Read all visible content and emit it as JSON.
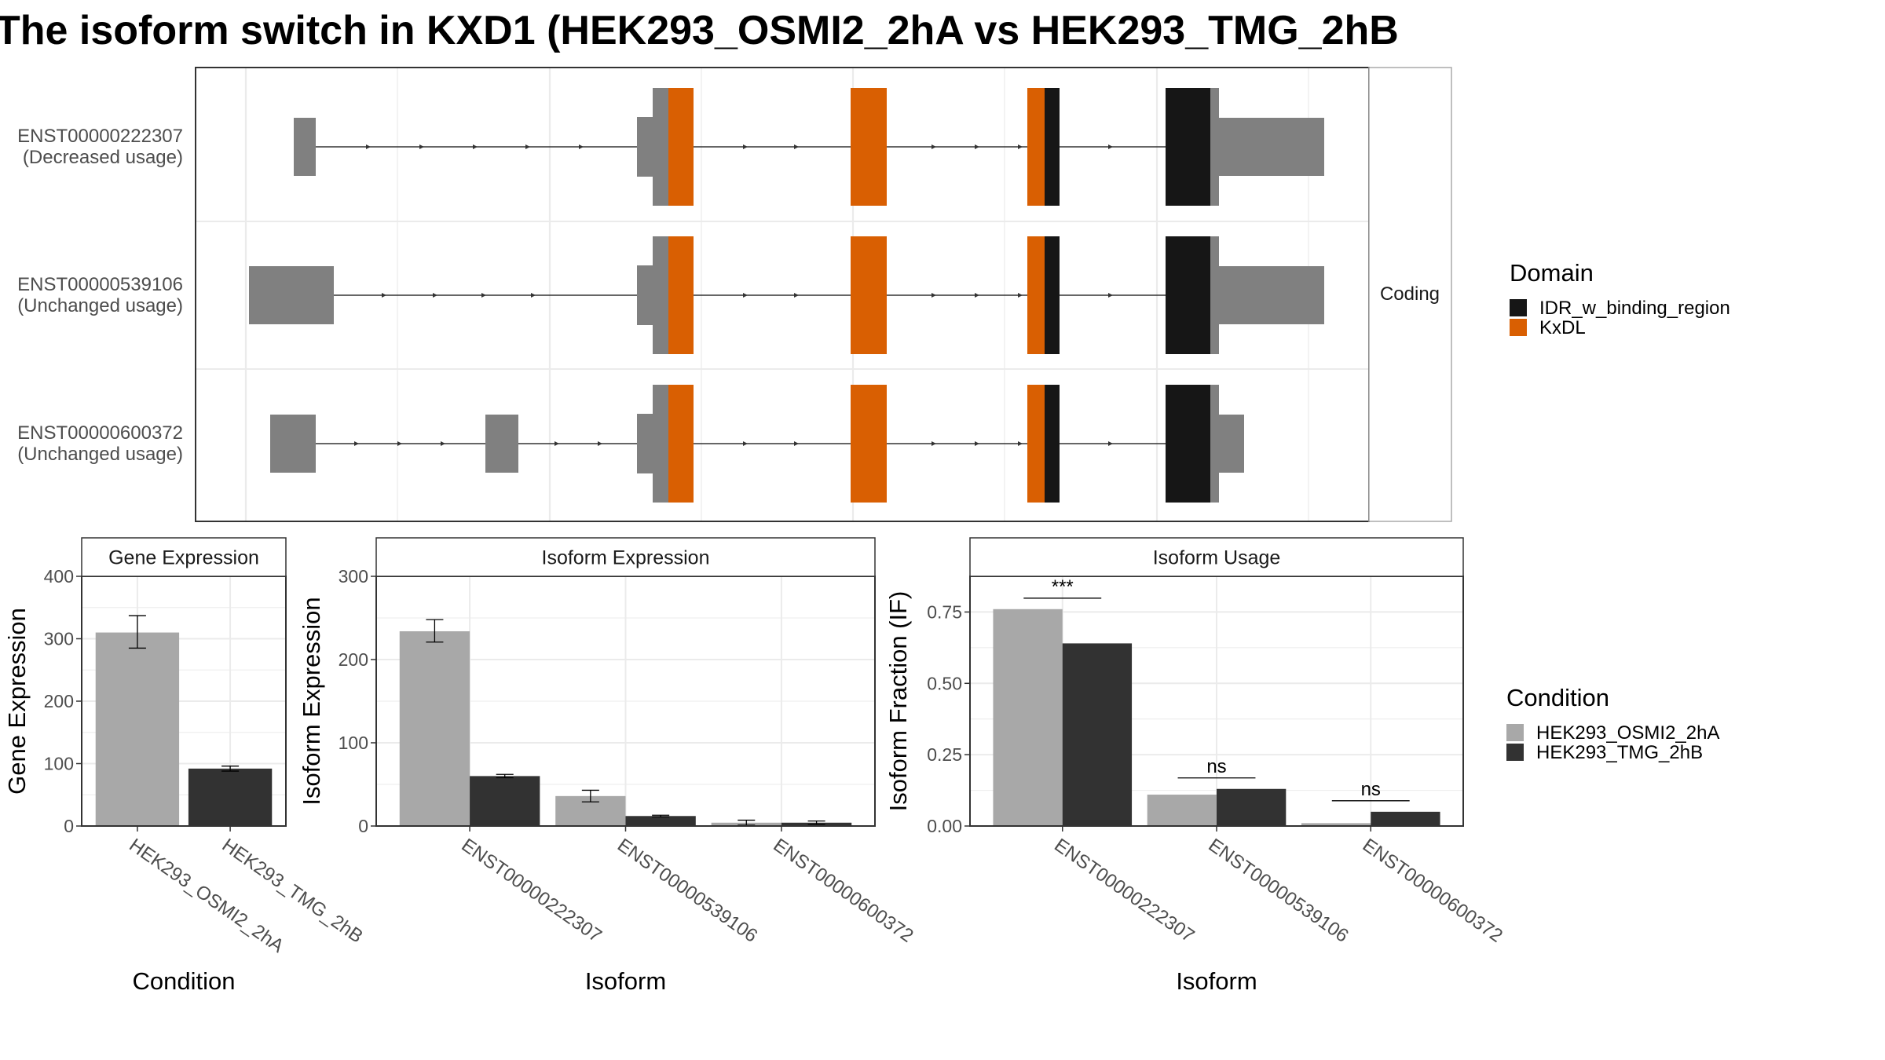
{
  "title": "The isoform switch in KXD1 (HEK293_OSMI2_2hA vs HEK293_TMG_2hB",
  "colors": {
    "utr": "#808080",
    "domain_idr": "#161616",
    "domain_kxdl": "#d95f02",
    "cond_a": "#a8a8a8",
    "cond_b": "#323232",
    "panel_border": "#333333",
    "grid": "#ebebeb",
    "strip_border": "#aaaaaa"
  },
  "chart_data": [
    {
      "type": "gene-structure",
      "strip_label": "Coding",
      "transcripts": [
        {
          "id": "ENST00000222307",
          "usage": "(Decreased usage)"
        },
        {
          "id": "ENST00000539106",
          "usage": "(Unchanged usage)"
        },
        {
          "id": "ENST00000600372",
          "usage": "(Unchanged usage)"
        }
      ],
      "legend": {
        "title": "Domain",
        "entries": [
          {
            "label": "IDR_w_binding_region",
            "color_key": "domain_idr"
          },
          {
            "label": "KxDL",
            "color_key": "domain_kxdl"
          }
        ]
      }
    },
    {
      "type": "bar",
      "strip_label": "Gene Expression",
      "categories": [
        "HEK293_OSMI2_2hA",
        "HEK293_TMG_2hB"
      ],
      "values": [
        310,
        92
      ],
      "err_low": [
        285,
        88
      ],
      "err_high": [
        337,
        96
      ],
      "xlabel": "Condition",
      "ylabel": "Gene Expression",
      "ylim": [
        0,
        400
      ],
      "yticks": [
        "0",
        "100",
        "200",
        "300",
        "400"
      ]
    },
    {
      "type": "bar",
      "strip_label": "Isoform Expression",
      "categories": [
        "ENST00000222307",
        "ENST00000539106",
        "ENST00000600372"
      ],
      "series": [
        {
          "name": "HEK293_OSMI2_2hA",
          "values": [
            234,
            36,
            4
          ],
          "err_low": [
            221,
            29,
            1
          ],
          "err_high": [
            248,
            43,
            7
          ]
        },
        {
          "name": "HEK293_TMG_2hB",
          "values": [
            60,
            12,
            4
          ],
          "err_low": [
            58,
            11,
            2
          ],
          "err_high": [
            62,
            13,
            6
          ]
        }
      ],
      "xlabel": "Isoform",
      "ylabel": "Isoform Expression",
      "ylim": [
        0,
        300
      ],
      "yticks": [
        "0",
        "100",
        "200",
        "300"
      ]
    },
    {
      "type": "bar",
      "strip_label": "Isoform Usage",
      "categories": [
        "ENST00000222307",
        "ENST00000539106",
        "ENST00000600372"
      ],
      "series": [
        {
          "name": "HEK293_OSMI2_2hA",
          "values": [
            0.76,
            0.11,
            0.01
          ]
        },
        {
          "name": "HEK293_TMG_2hB",
          "values": [
            0.64,
            0.13,
            0.05
          ]
        }
      ],
      "significance": [
        "***",
        "ns",
        "ns"
      ],
      "xlabel": "Isoform",
      "ylabel": "Isoform Fraction (IF)",
      "ylim": [
        0,
        0.875
      ],
      "yticks": [
        "0.00",
        "0.25",
        "0.50",
        "0.75"
      ],
      "legend": {
        "title": "Condition",
        "entries": [
          {
            "label": "HEK293_OSMI2_2hA",
            "color_key": "cond_a"
          },
          {
            "label": "HEK293_TMG_2hB",
            "color_key": "cond_b"
          }
        ]
      }
    }
  ]
}
